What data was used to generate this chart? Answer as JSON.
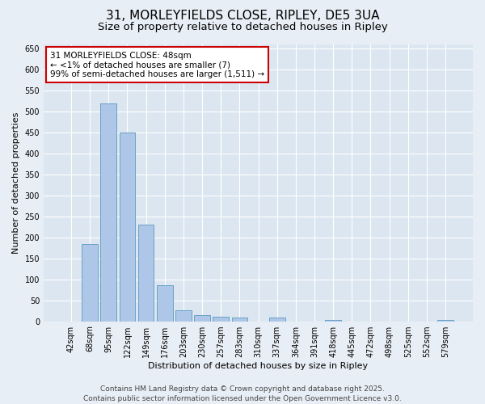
{
  "title": "31, MORLEYFIELDS CLOSE, RIPLEY, DE5 3UA",
  "subtitle": "Size of property relative to detached houses in Ripley",
  "xlabel": "Distribution of detached houses by size in Ripley",
  "ylabel": "Number of detached properties",
  "categories": [
    "42sqm",
    "68sqm",
    "95sqm",
    "122sqm",
    "149sqm",
    "176sqm",
    "203sqm",
    "230sqm",
    "257sqm",
    "283sqm",
    "310sqm",
    "337sqm",
    "364sqm",
    "391sqm",
    "418sqm",
    "445sqm",
    "472sqm",
    "498sqm",
    "525sqm",
    "552sqm",
    "579sqm"
  ],
  "values": [
    0,
    185,
    520,
    450,
    230,
    85,
    27,
    15,
    10,
    8,
    0,
    8,
    0,
    0,
    4,
    0,
    0,
    0,
    0,
    0,
    4
  ],
  "bar_color": "#aec6e8",
  "bar_edge_color": "#5a9abf",
  "ylim": [
    0,
    660
  ],
  "yticks": [
    0,
    50,
    100,
    150,
    200,
    250,
    300,
    350,
    400,
    450,
    500,
    550,
    600,
    650
  ],
  "annotation_title": "31 MORLEYFIELDS CLOSE: 48sqm",
  "annotation_line1": "← <1% of detached houses are smaller (7)",
  "annotation_line2": "99% of semi-detached houses are larger (1,511) →",
  "annotation_box_facecolor": "#ffffff",
  "annotation_box_edgecolor": "#cc0000",
  "footer_line1": "Contains HM Land Registry data © Crown copyright and database right 2025.",
  "footer_line2": "Contains public sector information licensed under the Open Government Licence v3.0.",
  "background_color": "#e8eef5",
  "plot_bg_color": "#dce6f0",
  "grid_color": "#ffffff",
  "title_fontsize": 11,
  "subtitle_fontsize": 9.5,
  "axis_label_fontsize": 8,
  "tick_fontsize": 7,
  "annotation_fontsize": 7.5,
  "footer_fontsize": 6.5
}
